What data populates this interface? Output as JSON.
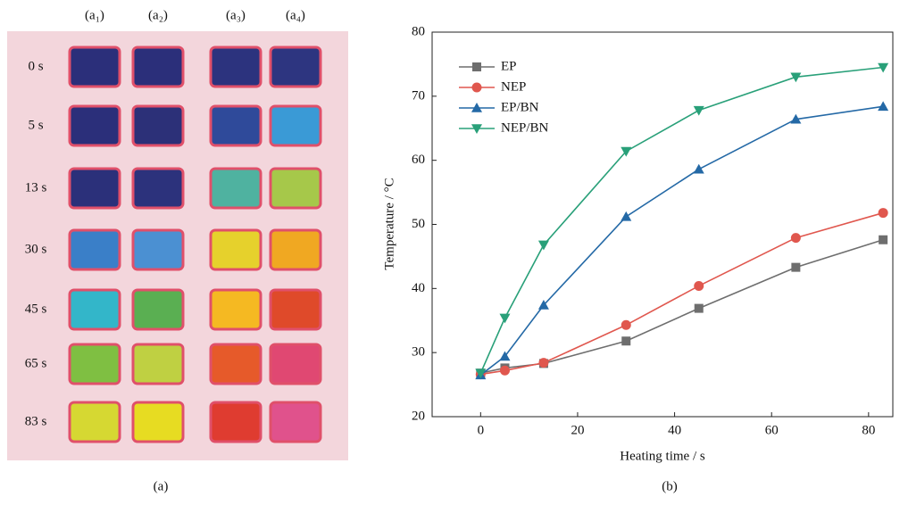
{
  "panel_a": {
    "columns": [
      "(a₁)",
      "(a₂)",
      "(a₃)",
      "(a₄)"
    ],
    "rows": [
      "0 s",
      "5 s",
      "13 s",
      "30 s",
      "45 s",
      "65 s",
      "83 s"
    ],
    "caption": "(a)"
  },
  "chart_data": {
    "type": "line",
    "caption": "(b)",
    "x_label": "Heating time / s",
    "y_label": "Temperature / °C",
    "x": [
      0,
      5,
      13,
      30,
      45,
      65,
      83
    ],
    "series": [
      {
        "name": "EP",
        "color": "#6e6e6e",
        "marker": "square",
        "values": [
          26.8,
          27.6,
          28.3,
          31.8,
          36.9,
          43.3,
          47.6
        ]
      },
      {
        "name": "NEP",
        "color": "#e0574e",
        "marker": "circle",
        "values": [
          26.6,
          27.2,
          28.4,
          34.3,
          40.4,
          47.9,
          51.8
        ]
      },
      {
        "name": "EP/BN",
        "color": "#2469a6",
        "marker": "triangle-up",
        "values": [
          26.5,
          29.4,
          37.4,
          51.2,
          58.6,
          66.4,
          68.4
        ]
      },
      {
        "name": "NEP/BN",
        "color": "#29a079",
        "marker": "triangle-down",
        "values": [
          26.8,
          35.4,
          46.8,
          61.4,
          67.8,
          73.0,
          74.5
        ]
      }
    ],
    "xlim": [
      -10,
      85
    ],
    "ylim": [
      20,
      80
    ],
    "xticks": [
      0,
      20,
      40,
      60,
      80
    ],
    "yticks": [
      20,
      30,
      40,
      50,
      60,
      70,
      80
    ],
    "legend": "upper left"
  }
}
